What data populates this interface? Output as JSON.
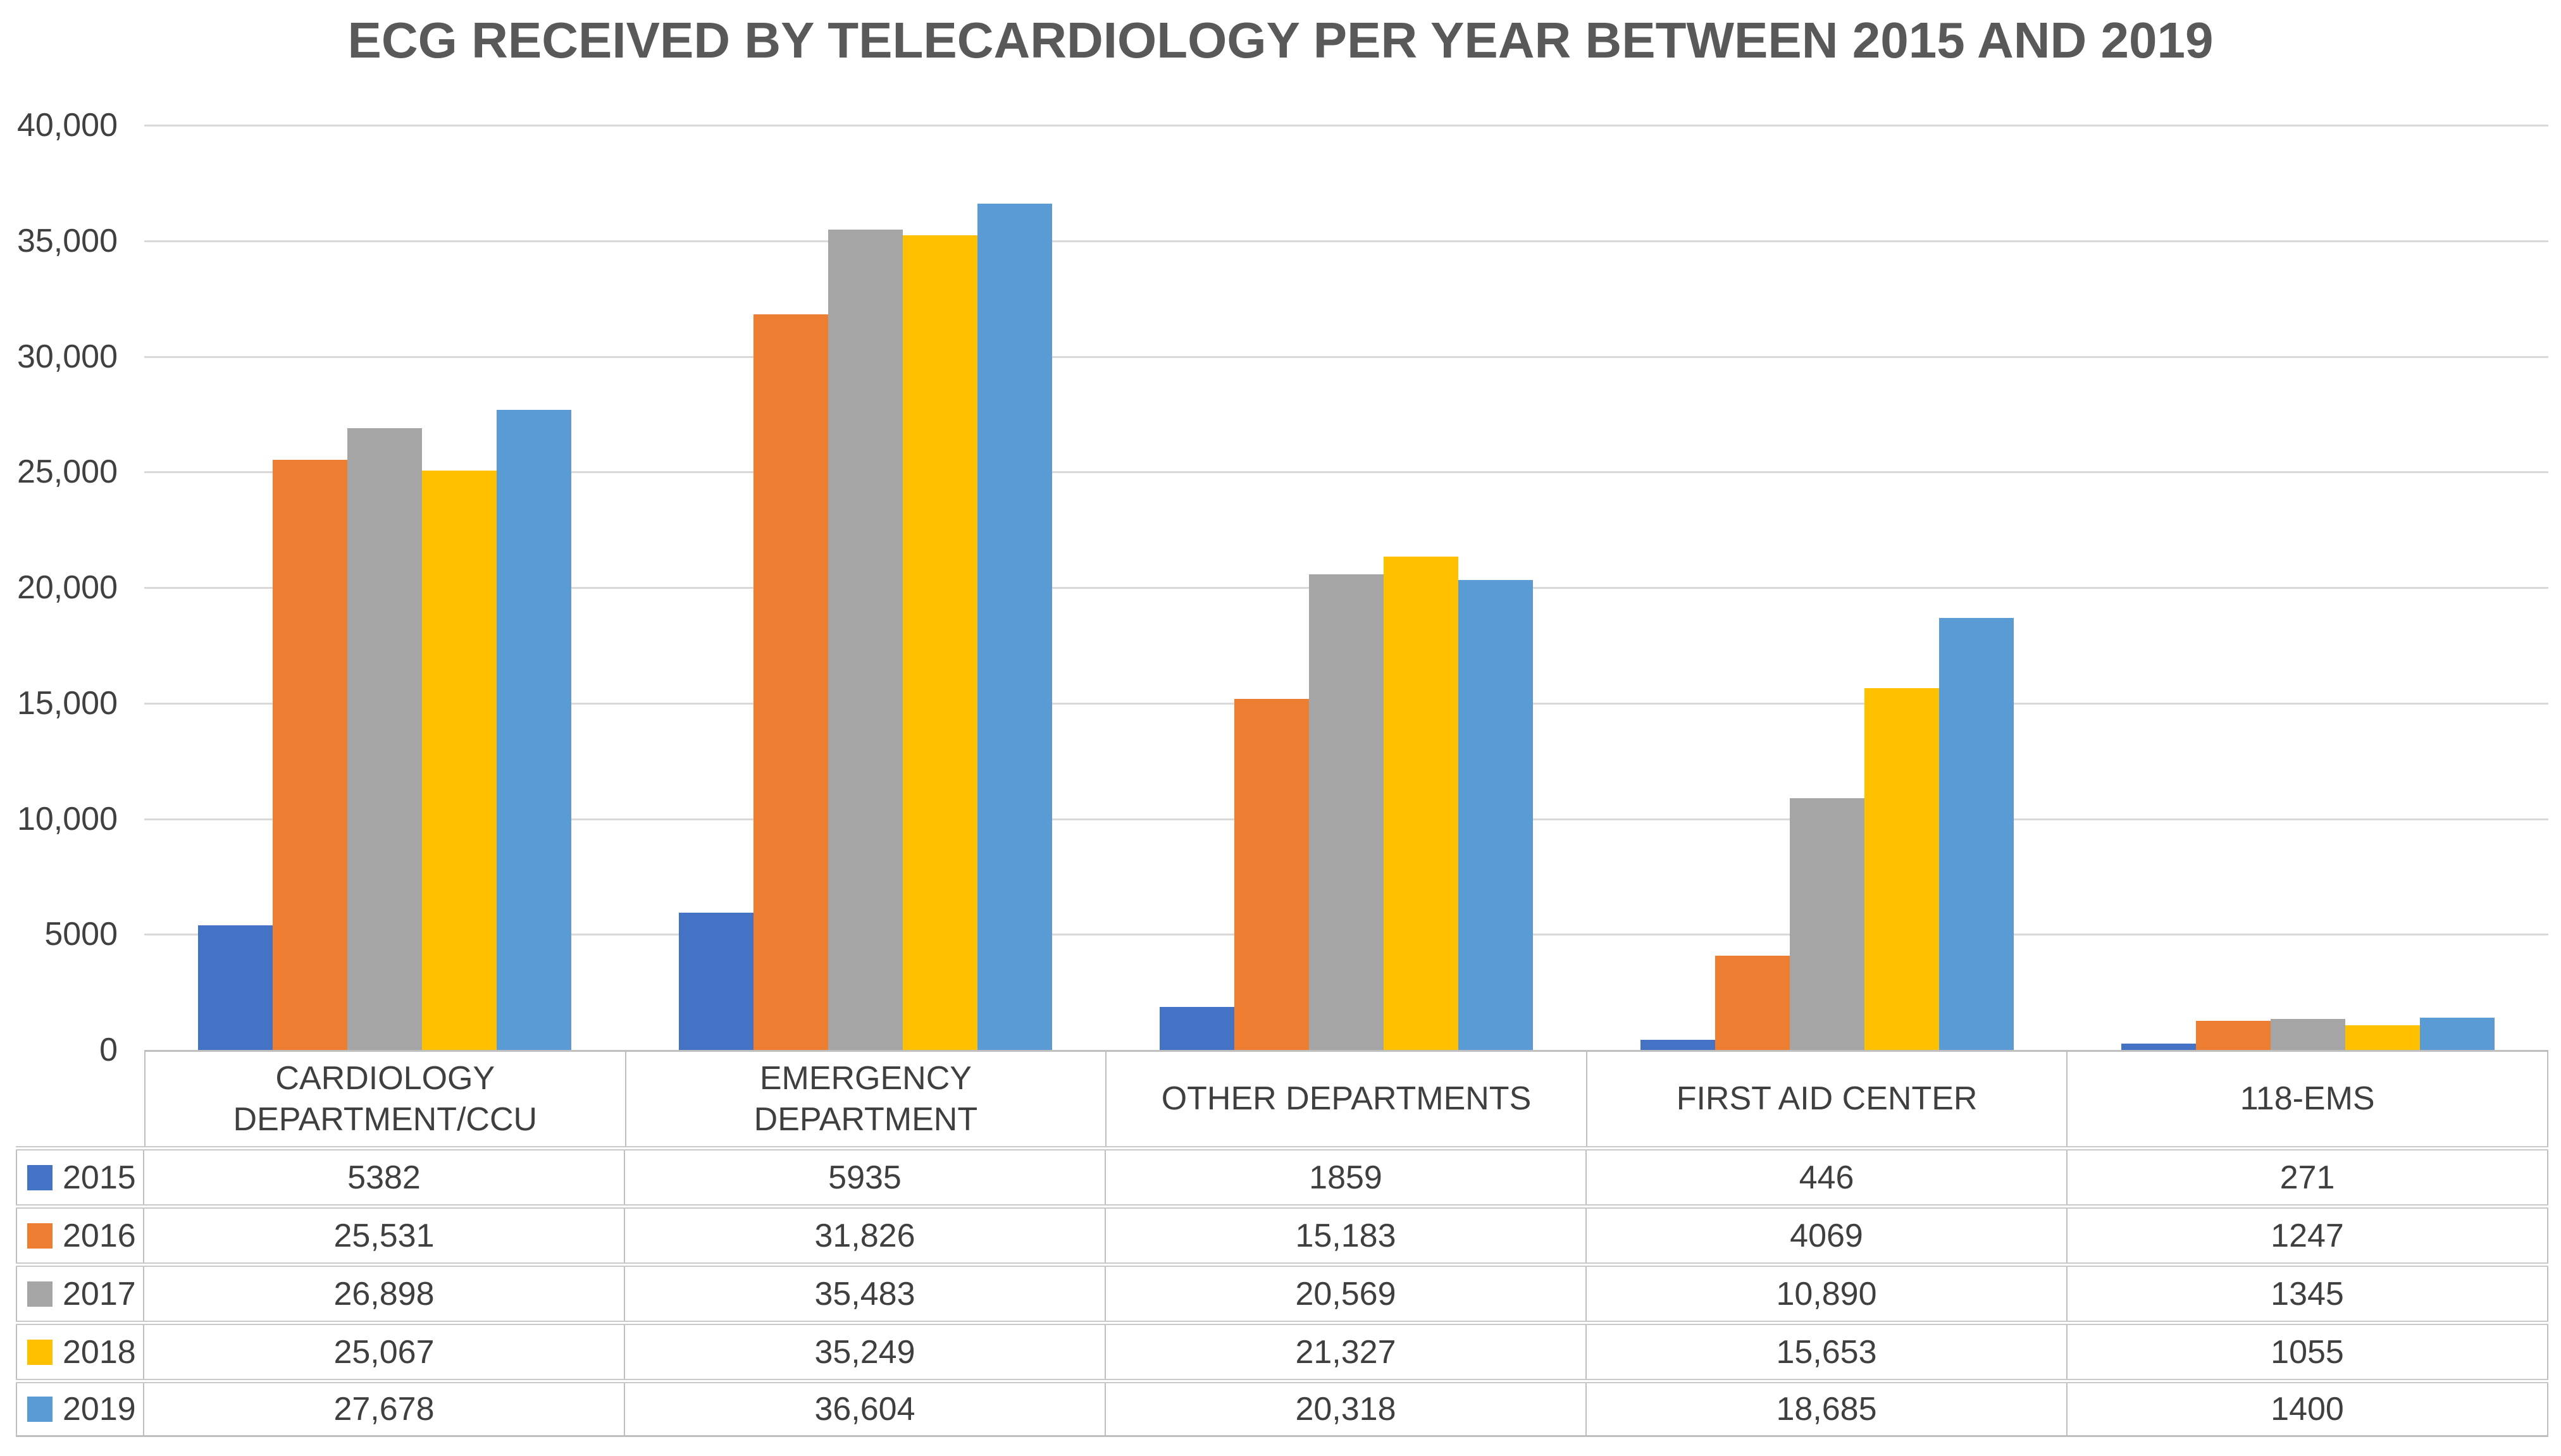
{
  "title": "ECG RECEIVED BY TELECARDIOLOGY PER YEAR BETWEEN 2015 AND 2019",
  "chart_data": {
    "type": "bar",
    "title": "ECG RECEIVED BY TELECARDIOLOGY PER YEAR BETWEEN 2015 AND 2019",
    "xlabel": "",
    "ylabel": "",
    "ylim": [
      0,
      40000
    ],
    "grid": true,
    "legend_position": "table-left",
    "show_data_table": true,
    "categories": [
      "CARDIOLOGY DEPARTMENT/CCU",
      "EMERGENCY DEPARTMENT",
      "OTHER DEPARTMENTS",
      "FIRST AID CENTER",
      "118-EMS"
    ],
    "yticks": [
      {
        "value": 40000,
        "label": "40,000"
      },
      {
        "value": 35000,
        "label": "35,000"
      },
      {
        "value": 30000,
        "label": "30,000"
      },
      {
        "value": 25000,
        "label": "25,000"
      },
      {
        "value": 20000,
        "label": "20,000"
      },
      {
        "value": 15000,
        "label": "15,000"
      },
      {
        "value": 10000,
        "label": "10,000"
      },
      {
        "value": 5000,
        "label": "5000"
      },
      {
        "value": 0,
        "label": "0"
      }
    ],
    "series": [
      {
        "name": "2015",
        "color": "#4472C4",
        "values": [
          5382,
          5935,
          1859,
          446,
          271
        ],
        "labels": [
          "5382",
          "5935",
          "1859",
          "446",
          "271"
        ]
      },
      {
        "name": "2016",
        "color": "#ED7D31",
        "values": [
          25531,
          31826,
          15183,
          4069,
          1247
        ],
        "labels": [
          "25,531",
          "31,826",
          "15,183",
          "4069",
          "1247"
        ]
      },
      {
        "name": "2017",
        "color": "#A5A5A5",
        "values": [
          26898,
          35483,
          20569,
          10890,
          1345
        ],
        "labels": [
          "26,898",
          "35,483",
          "20,569",
          "10,890",
          "1345"
        ]
      },
      {
        "name": "2018",
        "color": "#FFC000",
        "values": [
          25067,
          35249,
          21327,
          15653,
          1055
        ],
        "labels": [
          "25,067",
          "35,249",
          "21,327",
          "15,653",
          "1055"
        ]
      },
      {
        "name": "2019",
        "color": "#5B9BD5",
        "values": [
          27678,
          36604,
          20318,
          18685,
          1400
        ],
        "labels": [
          "27,678",
          "36,604",
          "20,318",
          "18,685",
          "1400"
        ]
      }
    ]
  }
}
